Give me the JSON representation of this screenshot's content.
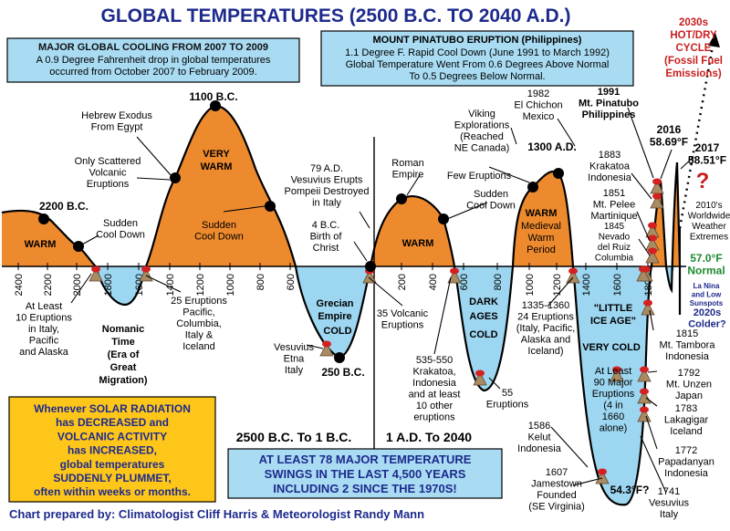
{
  "title": "GLOBAL TEMPERATURES (2500 B.C. TO 2040 A.D.)",
  "colors": {
    "warm": "#ee8a2e",
    "cold": "#9dd6f0",
    "title": "#1d2a8c",
    "box_fill": "#a9dcf3",
    "note_fill": "#ffc61a",
    "red": "#c81e1e",
    "green": "#1e8a2e"
  },
  "cooling_box": {
    "heading": "MAJOR GLOBAL COOLING FROM 2007 TO 2009",
    "lines": [
      "A 0.9 Degree Fahrenheit drop in global temperatures",
      "occurred from October 2007 to February 2009."
    ]
  },
  "pinatubo_box": {
    "heading": "MOUNT PINATUBO ERUPTION (Philippines)",
    "lines": [
      "1.1 Degree F. Rapid Cool Down (June 1991 to March 1992)",
      "Global Temperature Went From 0.6 Degrees Above Normal",
      "To 0.5 Degrees Below Normal."
    ]
  },
  "cycle_label": [
    "2030s",
    "HOT/DRY",
    "CYCLE",
    "(Fossil Fuel",
    "Emissions)"
  ],
  "axis_ticks_bc": [
    "2400",
    "2200",
    "2000",
    "1800",
    "1600",
    "1400",
    "1200",
    "1000",
    "800",
    "600"
  ],
  "axis_ticks_ad": [
    "200",
    "400",
    "600",
    "800",
    "1000",
    "1200",
    "1400",
    "1600",
    "1800"
  ],
  "region_labels": {
    "warm_left": "WARM",
    "very_warm": [
      "VERY",
      "WARM"
    ],
    "warm_roman": "WARM",
    "warm_medieval": [
      "WARM",
      "Medieval",
      "Warm",
      "Period"
    ],
    "cold_grecian": [
      "Grecian",
      "Empire",
      "COLD"
    ],
    "dark_ages": [
      "DARK",
      "AGES",
      "COLD"
    ],
    "little_ice_age": [
      "\"LITTLE",
      "ICE AGE\""
    ],
    "very_cold": "VERY COLD",
    "nomanic": [
      "Nomanic",
      "Time",
      "(Era of",
      "Great",
      "Migration)"
    ]
  },
  "annotations": [
    {
      "id": "b2200",
      "lines": [
        "2200 B.C."
      ]
    },
    {
      "id": "sudden1",
      "lines": [
        "Sudden",
        "Cool Down"
      ]
    },
    {
      "id": "b1100",
      "lines": [
        "1100 B.C."
      ]
    },
    {
      "id": "exodus",
      "lines": [
        "Hebrew Exodus",
        "From Egypt"
      ]
    },
    {
      "id": "scattered",
      "lines": [
        "Only Scattered",
        "Volcanic",
        "Eruptions"
      ]
    },
    {
      "id": "sudden2",
      "lines": [
        "Sudden",
        "Cool Down"
      ]
    },
    {
      "id": "vesuvius79",
      "lines": [
        "79 A.D.",
        "Vesuvius Erupts",
        "Pompeii Destroyed",
        "in Italy"
      ]
    },
    {
      "id": "christ",
      "lines": [
        "4 B.C.",
        "Birth of",
        "Christ"
      ]
    },
    {
      "id": "roman",
      "lines": [
        "Roman",
        "Empire"
      ]
    },
    {
      "id": "viking",
      "lines": [
        "Viking",
        "Explorations",
        "(Reached",
        "NE Canada)"
      ]
    },
    {
      "id": "few",
      "lines": [
        "Few Eruptions"
      ]
    },
    {
      "id": "sudden3",
      "lines": [
        "Sudden",
        "Cool Down"
      ]
    },
    {
      "id": "ad1300",
      "lines": [
        "1300 A.D."
      ]
    },
    {
      "id": "chichon",
      "lines": [
        "1982",
        "El Chichon",
        "Mexico"
      ]
    },
    {
      "id": "pinatubo",
      "lines": [
        "1991",
        "Mt. Pinatubo",
        "Philippines"
      ]
    },
    {
      "id": "krakatoa1883",
      "lines": [
        "1883",
        "Krakatoa",
        "Indonesia"
      ]
    },
    {
      "id": "pelee",
      "lines": [
        "1851",
        "Mt. Pelee",
        "Martinique"
      ]
    },
    {
      "id": "ruiz",
      "lines": [
        "1845",
        "Nevado",
        "del Ruiz",
        "Columbia"
      ]
    },
    {
      "id": "y2016",
      "lines": [
        "2016",
        "58.69°F"
      ]
    },
    {
      "id": "y2017",
      "lines": [
        "2017",
        "58.51°F"
      ]
    },
    {
      "id": "extremes",
      "lines": [
        "2010's",
        "Worldwide",
        "Weather",
        "Extremes"
      ]
    },
    {
      "id": "normal",
      "lines": [
        "57.0°F",
        "Normal"
      ]
    },
    {
      "id": "lanina",
      "lines": [
        "La Nina",
        "and Low",
        "Sunspots"
      ]
    },
    {
      "id": "colder",
      "lines": [
        "2020s",
        "Colder?"
      ]
    },
    {
      "id": "atleast10",
      "lines": [
        "At Least",
        "10 Eruptions",
        "in Italy,",
        "Pacific",
        "and Alaska"
      ]
    },
    {
      "id": "eruptions25",
      "lines": [
        "25 Eruptions",
        "Pacific,",
        "Columbia,",
        "Italy &",
        "Iceland"
      ]
    },
    {
      "id": "etna",
      "lines": [
        "Vesuvius",
        "Etna",
        "Italy"
      ]
    },
    {
      "id": "bc250",
      "lines": [
        "250 B.C."
      ]
    },
    {
      "id": "volc35",
      "lines": [
        "35 Volcanic",
        "Eruptions"
      ]
    },
    {
      "id": "krak535",
      "lines": [
        "535-550",
        "Krakatoa,",
        "Indonesia",
        "and at least",
        "10 other",
        "eruptions"
      ]
    },
    {
      "id": "erupt55",
      "lines": [
        "55",
        "Eruptions"
      ]
    },
    {
      "id": "e1335",
      "lines": [
        "1335-1360",
        "24 Eruptions",
        "(Italy, Pacific,",
        "Alaska and",
        "Iceland)"
      ]
    },
    {
      "id": "major90",
      "lines": [
        "At Least",
        "90 Major",
        "Eruptions",
        "(4 in",
        "1660",
        "alone)"
      ]
    },
    {
      "id": "tambora",
      "lines": [
        "1815",
        "Mt. Tambora",
        "Indonesia"
      ]
    },
    {
      "id": "unzen",
      "lines": [
        "1792",
        "Mt. Unzen",
        "Japan"
      ]
    },
    {
      "id": "laki",
      "lines": [
        "1783",
        "Lakagigar",
        "Iceland"
      ]
    },
    {
      "id": "papandayan",
      "lines": [
        "1772",
        "Papadanyan",
        "Indonesia"
      ]
    },
    {
      "id": "vesuvius1741",
      "lines": [
        "1741",
        "Vesuvius",
        "Italy"
      ]
    },
    {
      "id": "kelut",
      "lines": [
        "1586",
        "Kelut",
        "Indonesia"
      ]
    },
    {
      "id": "jamestown",
      "lines": [
        "1607",
        "Jamestown",
        "Founded",
        "(SE Virginia)"
      ]
    },
    {
      "id": "low543",
      "lines": [
        "54.3°F?"
      ]
    }
  ],
  "era_labels": {
    "bc": "2500 B.C. To 1 B.C.",
    "ad": "1 A.D. To 2040"
  },
  "solar_note": [
    "Whenever SOLAR RADIATION",
    "has DECREASED and",
    "VOLCANIC ACTIVITY",
    "has INCREASED,",
    "global temperatures",
    "SUDDENLY PLUMMET,",
    "often within weeks or months."
  ],
  "swings_box": [
    "AT LEAST 78 MAJOR TEMPERATURE",
    "SWINGS IN THE LAST 4,500 YEARS",
    "INCLUDING 2 SINCE THE 1970S!"
  ],
  "question_mark": "?",
  "credit": "Chart prepared by: Climatologist Cliff Harris & Meteorologist Randy Mann"
}
